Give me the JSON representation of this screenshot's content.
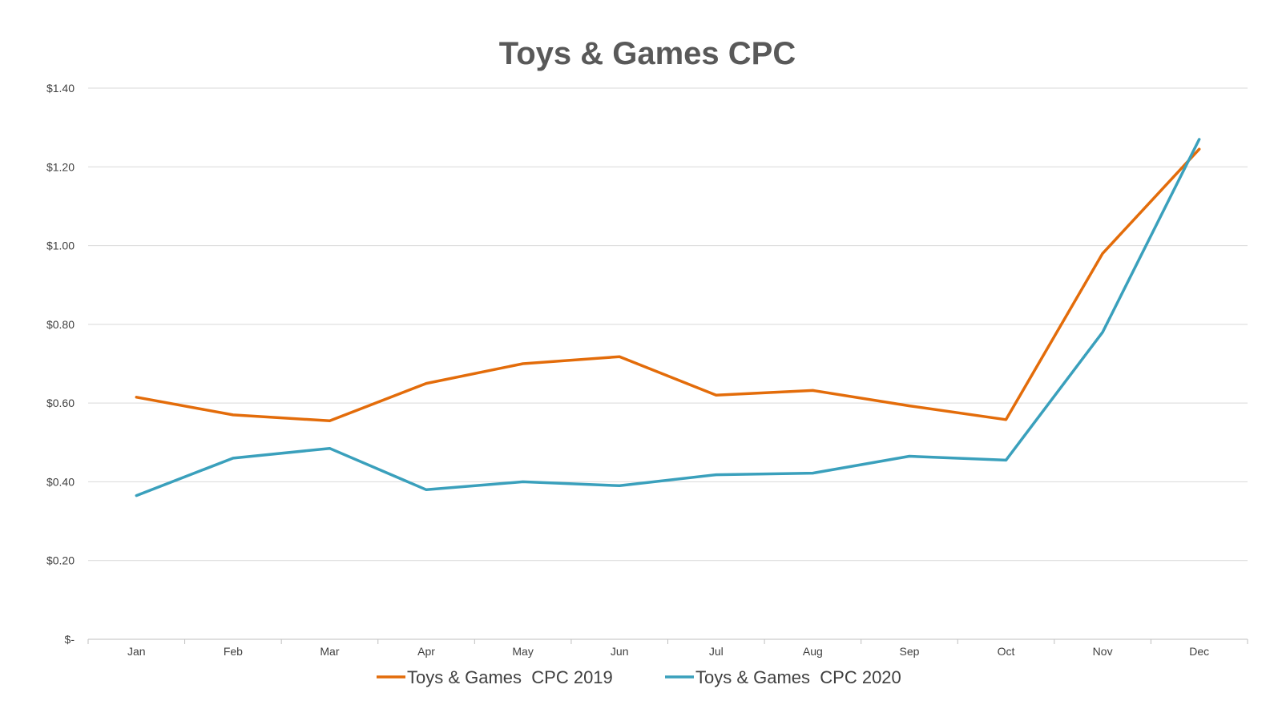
{
  "chart_data": {
    "type": "line",
    "title": "Toys & Games CPC",
    "xlabel": "",
    "ylabel": "",
    "categories": [
      "Jan",
      "Feb",
      "Mar",
      "Apr",
      "May",
      "Jun",
      "Jul",
      "Aug",
      "Sep",
      "Oct",
      "Nov",
      "Dec"
    ],
    "ylim": [
      0,
      1.4
    ],
    "yticks": [
      0,
      0.2,
      0.4,
      0.6,
      0.8,
      1.0,
      1.2,
      1.4
    ],
    "ytick_labels": [
      "$-",
      "$0.20",
      "$0.40",
      "$0.60",
      "$0.80",
      "$1.00",
      "$1.20",
      "$1.40"
    ],
    "grid": true,
    "legend_position": "bottom",
    "series": [
      {
        "name": "Toys & Games  CPC 2019",
        "color": "#E36C0A",
        "values": [
          0.615,
          0.57,
          0.555,
          0.65,
          0.7,
          0.718,
          0.62,
          0.632,
          0.593,
          0.558,
          0.98,
          1.245
        ]
      },
      {
        "name": "Toys & Games  CPC 2020",
        "color": "#3AA0BC",
        "values": [
          0.365,
          0.46,
          0.485,
          0.38,
          0.4,
          0.39,
          0.418,
          0.422,
          0.465,
          0.455,
          0.78,
          1.27
        ]
      }
    ]
  }
}
